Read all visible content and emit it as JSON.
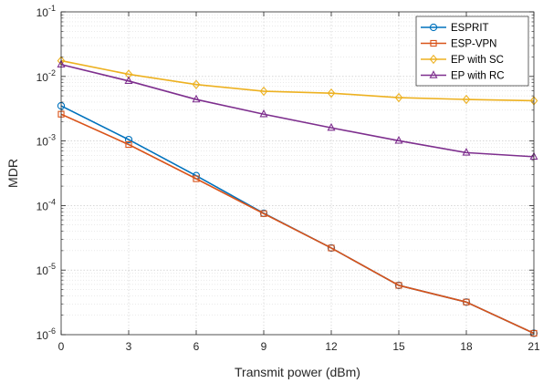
{
  "chart_data": {
    "type": "line",
    "title": "",
    "xlabel": "Transmit power (dBm)",
    "ylabel": "MDR",
    "xlim": [
      0,
      21
    ],
    "ylim": [
      1e-06,
      0.1
    ],
    "yscale": "log",
    "grid": true,
    "legend_position": "top-right",
    "x": [
      0,
      3,
      6,
      9,
      12,
      15,
      18,
      21
    ],
    "x_ticks": [
      "0",
      "3",
      "6",
      "9",
      "12",
      "15",
      "18",
      "21"
    ],
    "y_ticks": [
      {
        "value": 1e-06,
        "base": "10",
        "exp": "-6"
      },
      {
        "value": 1e-05,
        "base": "10",
        "exp": "-5"
      },
      {
        "value": 0.0001,
        "base": "10",
        "exp": "-4"
      },
      {
        "value": 0.001,
        "base": "10",
        "exp": "-3"
      },
      {
        "value": 0.01,
        "base": "10",
        "exp": "-2"
      },
      {
        "value": 0.1,
        "base": "10",
        "exp": "-1"
      }
    ],
    "series": [
      {
        "name": "ESPRIT",
        "color": "#0072BD",
        "marker": "circle",
        "values": [
          0.0035,
          0.00105,
          0.00029,
          7.6e-05,
          2.2e-05,
          5.8e-06,
          3.2e-06,
          1.05e-06
        ]
      },
      {
        "name": "ESP-VPN",
        "color": "#D95319",
        "marker": "square",
        "values": [
          0.0026,
          0.00088,
          0.00026,
          7.5e-05,
          2.2e-05,
          5.8e-06,
          3.2e-06,
          1.05e-06
        ]
      },
      {
        "name": "EP with SC",
        "color": "#EDB120",
        "marker": "diamond",
        "values": [
          0.0175,
          0.0108,
          0.0075,
          0.0059,
          0.0055,
          0.0047,
          0.0044,
          0.0042
        ]
      },
      {
        "name": "EP with RC",
        "color": "#7E2F8E",
        "marker": "triangle",
        "values": [
          0.0153,
          0.0085,
          0.0044,
          0.0026,
          0.0016,
          0.00101,
          0.00066,
          0.00057
        ]
      }
    ]
  }
}
